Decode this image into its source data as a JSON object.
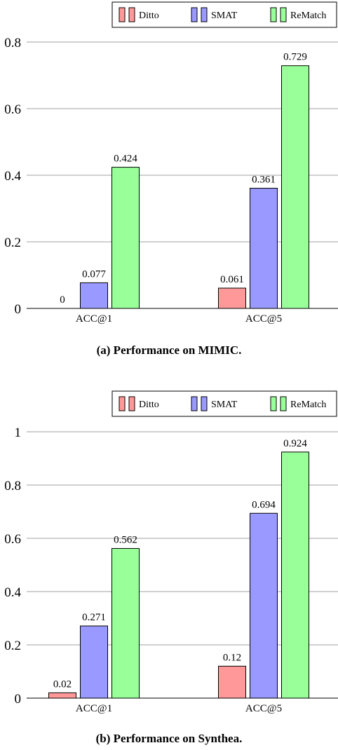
{
  "chart_data": [
    {
      "type": "bar",
      "categories": [
        "ACC@1",
        "ACC@5"
      ],
      "series": [
        {
          "name": "Ditto",
          "values": [
            0,
            0.061
          ],
          "value_labels": [
            "0",
            "0.061"
          ]
        },
        {
          "name": "SMAT",
          "values": [
            0.077,
            0.361
          ],
          "value_labels": [
            "0.077",
            "0.361"
          ]
        },
        {
          "name": "ReMatch",
          "values": [
            0.424,
            0.729
          ],
          "value_labels": [
            "0.424",
            "0.729"
          ]
        }
      ],
      "ylim": [
        0,
        0.8
      ],
      "yticks": [
        0,
        0.2,
        0.4,
        0.6,
        0.8
      ],
      "ytick_labels": [
        "0",
        "0.2",
        "0.4",
        "0.6",
        "0.8"
      ],
      "grid": true,
      "legend_position": "top-right",
      "caption": "(a) Performance on MIMIC."
    },
    {
      "type": "bar",
      "categories": [
        "ACC@1",
        "ACC@5"
      ],
      "series": [
        {
          "name": "Ditto",
          "values": [
            0.02,
            0.12
          ],
          "value_labels": [
            "0.02",
            "0.12"
          ]
        },
        {
          "name": "SMAT",
          "values": [
            0.271,
            0.694
          ],
          "value_labels": [
            "0.271",
            "0.694"
          ]
        },
        {
          "name": "ReMatch",
          "values": [
            0.562,
            0.924
          ],
          "value_labels": [
            "0.562",
            "0.924"
          ]
        }
      ],
      "ylim": [
        0,
        1
      ],
      "yticks": [
        0,
        0.2,
        0.4,
        0.6,
        0.8,
        1
      ],
      "ytick_labels": [
        "0",
        "0.2",
        "0.4",
        "0.6",
        "0.8",
        "1"
      ],
      "grid": true,
      "legend_position": "top-right",
      "caption": "(b) Performance on Synthea."
    }
  ],
  "colors": {
    "Ditto": "#ff9999",
    "SMAT": "#9999ff",
    "ReMatch": "#99ff99",
    "grid": "#a0a0a0"
  }
}
